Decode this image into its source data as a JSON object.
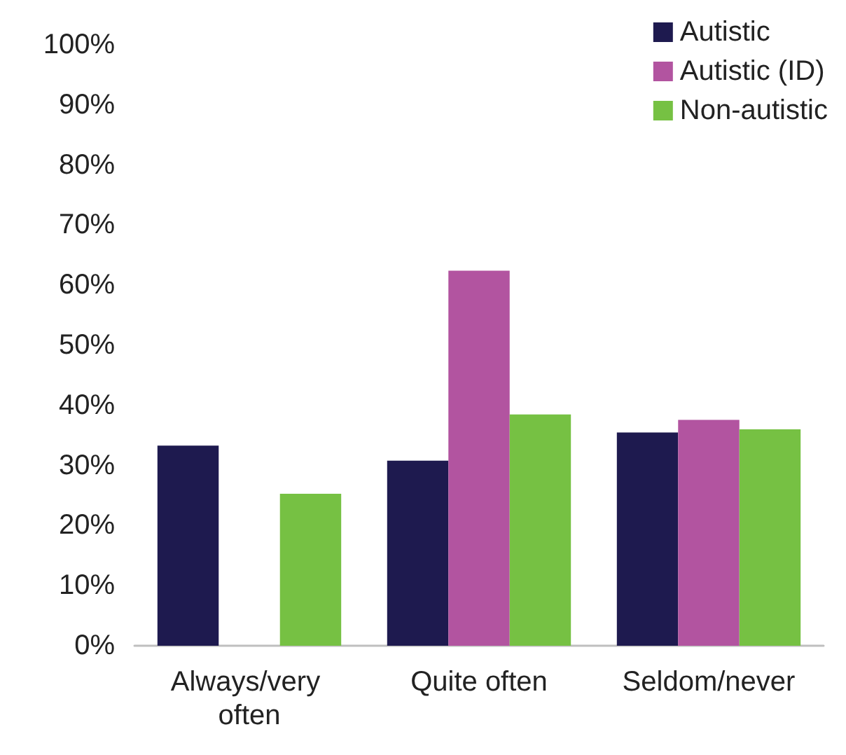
{
  "chart_data": {
    "type": "bar",
    "categories": [
      "Always/very often",
      "Quite often",
      "Seldom/never"
    ],
    "series": [
      {
        "name": "Autistic",
        "color": "#1e1a4f",
        "values": [
          33.3,
          30.8,
          35.5
        ]
      },
      {
        "name": "Autistic (ID)",
        "color": "#b254a0",
        "values": [
          null,
          62.4,
          37.6
        ]
      },
      {
        "name": "Non-autistic",
        "color": "#76c143",
        "values": [
          25.3,
          38.5,
          36.0
        ]
      }
    ],
    "ylim": [
      0,
      100
    ],
    "yticks": [
      {
        "value": 0,
        "label": "0%"
      },
      {
        "value": 10,
        "label": "10%"
      },
      {
        "value": 20,
        "label": "20%"
      },
      {
        "value": 30,
        "label": "30%"
      },
      {
        "value": 40,
        "label": "40%"
      },
      {
        "value": 50,
        "label": "50%"
      },
      {
        "value": 60,
        "label": "60%"
      },
      {
        "value": 70,
        "label": "70%"
      },
      {
        "value": 80,
        "label": "80%"
      },
      {
        "value": 90,
        "label": "90%"
      },
      {
        "value": 100,
        "label": "100%"
      }
    ],
    "grid": false,
    "legend": "top right"
  }
}
